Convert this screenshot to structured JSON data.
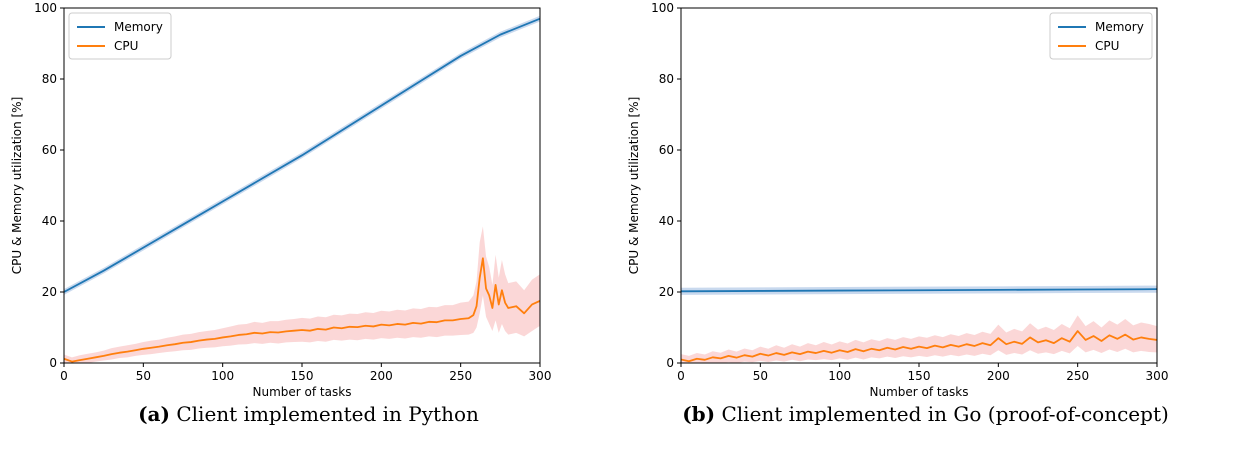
{
  "chart_data": [
    {
      "id": "a",
      "type": "line",
      "caption_tag": "(a)",
      "caption_text": "Client implemented in Python",
      "xlabel": "Number of tasks",
      "ylabel": "CPU & Memory utilization [%]",
      "xlim": [
        0,
        300
      ],
      "ylim": [
        0,
        100
      ],
      "xticks": [
        0,
        50,
        100,
        150,
        200,
        250,
        300
      ],
      "yticks": [
        0,
        20,
        40,
        60,
        80,
        100
      ],
      "grid": false,
      "legend_position": "top-left",
      "series": [
        {
          "name": "Memory",
          "color": "#1f77b4",
          "band_color": "#9db9e0",
          "x": [
            0,
            25,
            50,
            75,
            100,
            125,
            150,
            175,
            200,
            225,
            250,
            275,
            300
          ],
          "y": [
            20,
            26,
            32.5,
            39,
            45.5,
            52,
            58.5,
            65.5,
            72.5,
            79.5,
            86.5,
            92.5,
            97
          ],
          "band": 0.8
        },
        {
          "name": "CPU",
          "color": "#ff7f0e",
          "band_color": "#f7b6b6",
          "x": [
            0,
            5,
            10,
            15,
            20,
            25,
            30,
            35,
            40,
            45,
            50,
            55,
            60,
            65,
            70,
            75,
            80,
            85,
            90,
            95,
            100,
            105,
            110,
            115,
            120,
            125,
            130,
            135,
            140,
            145,
            150,
            155,
            160,
            165,
            170,
            175,
            180,
            185,
            190,
            195,
            200,
            205,
            210,
            215,
            220,
            225,
            230,
            235,
            240,
            245,
            250,
            255,
            258,
            260,
            262,
            264,
            266,
            268,
            270,
            272,
            274,
            276,
            278,
            280,
            285,
            290,
            295,
            300
          ],
          "y": [
            1.2,
            0.4,
            0.8,
            1.2,
            1.6,
            2.0,
            2.5,
            2.9,
            3.2,
            3.6,
            4.0,
            4.3,
            4.6,
            5.0,
            5.3,
            5.7,
            5.9,
            6.3,
            6.6,
            6.8,
            7.2,
            7.5,
            7.9,
            8.1,
            8.5,
            8.3,
            8.7,
            8.6,
            8.9,
            9.1,
            9.3,
            9.1,
            9.6,
            9.4,
            10.0,
            9.8,
            10.2,
            10.1,
            10.5,
            10.3,
            10.8,
            10.6,
            11.0,
            10.8,
            11.3,
            11.1,
            11.6,
            11.5,
            12.0,
            12.0,
            12.4,
            12.6,
            13.5,
            16.0,
            24.0,
            29.5,
            21.0,
            19.0,
            15.5,
            22.0,
            16.5,
            20.5,
            17.0,
            15.5,
            16.0,
            14.0,
            16.5,
            17.5
          ],
          "band_lo": [
            0,
            0,
            0,
            0,
            0.4,
            0.7,
            1.0,
            1.4,
            1.6,
            2.0,
            2.3,
            2.5,
            2.8,
            3.1,
            3.3,
            3.6,
            3.7,
            4.1,
            4.3,
            4.4,
            4.7,
            4.9,
            5.2,
            5.3,
            5.6,
            5.4,
            5.7,
            5.5,
            5.8,
            5.9,
            6.0,
            5.8,
            6.2,
            6.0,
            6.5,
            6.3,
            6.6,
            6.4,
            6.8,
            6.6,
            7.0,
            6.8,
            7.1,
            6.9,
            7.3,
            7.1,
            7.5,
            7.3,
            7.7,
            7.7,
            7.9,
            8.0,
            8.5,
            10.0,
            14.0,
            19.0,
            13.0,
            11.0,
            9.0,
            12.0,
            8.5,
            11.0,
            9.0,
            8.0,
            8.5,
            7.5,
            9.0,
            10.5
          ],
          "band_hi": [
            2.4,
            1.6,
            2.2,
            2.6,
            3.0,
            3.5,
            4.2,
            4.6,
            5.0,
            5.4,
            5.9,
            6.3,
            6.6,
            7.1,
            7.5,
            8.0,
            8.2,
            8.7,
            9.0,
            9.3,
            9.8,
            10.3,
            10.8,
            11.0,
            11.6,
            11.3,
            11.8,
            11.8,
            12.2,
            12.4,
            12.7,
            12.5,
            13.1,
            12.9,
            13.6,
            13.4,
            13.9,
            13.8,
            14.3,
            14.1,
            14.7,
            14.5,
            15.0,
            14.8,
            15.4,
            15.2,
            15.8,
            15.7,
            16.3,
            16.3,
            17.0,
            17.3,
            19.0,
            23.0,
            34.0,
            38.5,
            30.0,
            27.0,
            22.0,
            30.5,
            24.0,
            29.0,
            25.0,
            22.5,
            23.0,
            20.5,
            23.5,
            25.0
          ]
        }
      ]
    },
    {
      "id": "b",
      "type": "line",
      "caption_tag": "(b)",
      "caption_text": "Client implemented in Go (proof-of-concept)",
      "xlabel": "Number of tasks",
      "ylabel": "CPU & Memory utilization [%]",
      "xlim": [
        0,
        300
      ],
      "ylim": [
        0,
        100
      ],
      "xticks": [
        0,
        50,
        100,
        150,
        200,
        250,
        300
      ],
      "yticks": [
        0,
        20,
        40,
        60,
        80,
        100
      ],
      "grid": false,
      "legend_position": "top-right",
      "series": [
        {
          "name": "Memory",
          "color": "#1f77b4",
          "band_color": "#9db9e0",
          "x": [
            0,
            50,
            100,
            150,
            200,
            250,
            300
          ],
          "y": [
            20.2,
            20.3,
            20.4,
            20.5,
            20.6,
            20.7,
            20.8
          ],
          "band": 1.0
        },
        {
          "name": "CPU",
          "color": "#ff7f0e",
          "band_color": "#f7b6b6",
          "x": [
            0,
            5,
            10,
            15,
            20,
            25,
            30,
            35,
            40,
            45,
            50,
            55,
            60,
            65,
            70,
            75,
            80,
            85,
            90,
            95,
            100,
            105,
            110,
            115,
            120,
            125,
            130,
            135,
            140,
            145,
            150,
            155,
            160,
            165,
            170,
            175,
            180,
            185,
            190,
            195,
            200,
            205,
            210,
            215,
            220,
            225,
            230,
            235,
            240,
            245,
            250,
            255,
            260,
            265,
            270,
            275,
            280,
            285,
            290,
            295,
            300
          ],
          "y": [
            1.0,
            0.5,
            1.2,
            0.9,
            1.6,
            1.3,
            2.0,
            1.5,
            2.2,
            1.8,
            2.6,
            2.1,
            2.8,
            2.3,
            3.0,
            2.5,
            3.2,
            2.8,
            3.4,
            2.9,
            3.6,
            3.1,
            3.9,
            3.3,
            4.0,
            3.6,
            4.3,
            3.8,
            4.5,
            4.0,
            4.6,
            4.2,
            4.9,
            4.4,
            5.1,
            4.6,
            5.3,
            4.8,
            5.6,
            5.0,
            7.0,
            5.3,
            6.0,
            5.4,
            7.2,
            5.8,
            6.4,
            5.6,
            7.0,
            6.0,
            9.0,
            6.5,
            7.6,
            6.2,
            7.8,
            6.8,
            8.0,
            6.6,
            7.2,
            6.8,
            6.5
          ],
          "band_lo": [
            0,
            0,
            0,
            0,
            0,
            0,
            0.2,
            0,
            0.4,
            0.2,
            0.6,
            0.3,
            0.7,
            0.4,
            0.9,
            0.5,
            1.0,
            0.8,
            1.1,
            0.8,
            1.3,
            0.9,
            1.5,
            1.0,
            1.6,
            1.3,
            1.8,
            1.4,
            1.9,
            1.6,
            2.0,
            1.7,
            2.2,
            1.8,
            2.3,
            1.9,
            2.4,
            2.0,
            2.6,
            2.2,
            3.6,
            2.3,
            2.8,
            2.4,
            3.6,
            2.6,
            3.0,
            2.5,
            3.4,
            2.7,
            4.8,
            3.0,
            3.7,
            2.8,
            3.8,
            3.1,
            4.0,
            3.0,
            3.4,
            3.1,
            3.0
          ],
          "band_hi": [
            2.5,
            2.0,
            2.8,
            2.4,
            3.3,
            2.9,
            3.8,
            3.2,
            4.1,
            3.6,
            4.6,
            4.0,
            5.0,
            4.3,
            5.3,
            4.6,
            5.6,
            5.0,
            5.9,
            5.2,
            6.1,
            5.5,
            6.5,
            5.8,
            6.7,
            6.2,
            7.0,
            6.5,
            7.3,
            6.8,
            7.5,
            7.1,
            7.8,
            7.3,
            8.1,
            7.6,
            8.4,
            7.9,
            8.8,
            8.2,
            10.8,
            8.6,
            9.6,
            8.9,
            11.2,
            9.4,
            10.2,
            9.3,
            11.0,
            9.8,
            13.4,
            10.4,
            11.8,
            10.0,
            12.0,
            10.8,
            12.4,
            10.6,
            11.4,
            11.0,
            10.4
          ]
        }
      ]
    }
  ]
}
